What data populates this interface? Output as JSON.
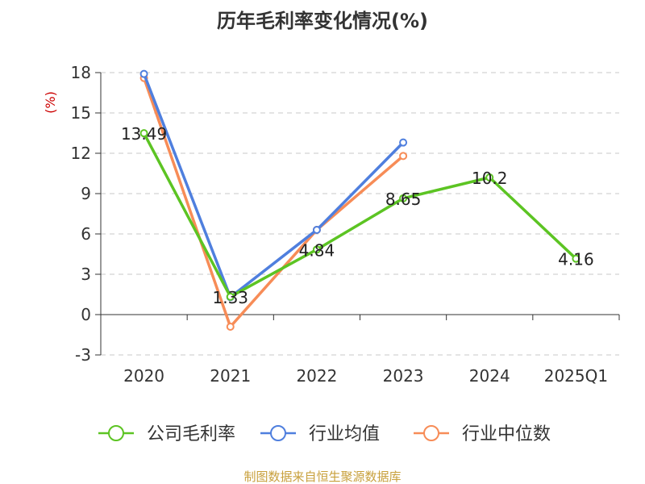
{
  "chart_data": {
    "type": "line",
    "title": "历年毛利率变化情况(%)",
    "ylabel": "(%)",
    "xlabel": "",
    "categories": [
      "2020",
      "2021",
      "2022",
      "2023",
      "2024",
      "2025Q1"
    ],
    "ylim": [
      -3,
      18
    ],
    "yticks": [
      "-3",
      "0",
      "3",
      "6",
      "9",
      "12",
      "15",
      "18"
    ],
    "grid": true,
    "legend_position": "bottom",
    "series": [
      {
        "name": "公司毛利率",
        "color": "#5cc423",
        "values": [
          13.49,
          1.33,
          4.84,
          8.65,
          10.2,
          4.16
        ],
        "labels": [
          "13.49",
          "1.33",
          "4.84",
          "8.65",
          "10.2",
          "4.16"
        ]
      },
      {
        "name": "行业均值",
        "color": "#4f7fde",
        "values": [
          17.9,
          1.3,
          6.3,
          12.8,
          null,
          null
        ]
      },
      {
        "name": "行业中位数",
        "color": "#f78c57",
        "values": [
          17.6,
          -0.9,
          6.3,
          11.8,
          null,
          null
        ]
      }
    ]
  },
  "footer": {
    "source_text": "制图数据来自恒生聚源数据库"
  }
}
